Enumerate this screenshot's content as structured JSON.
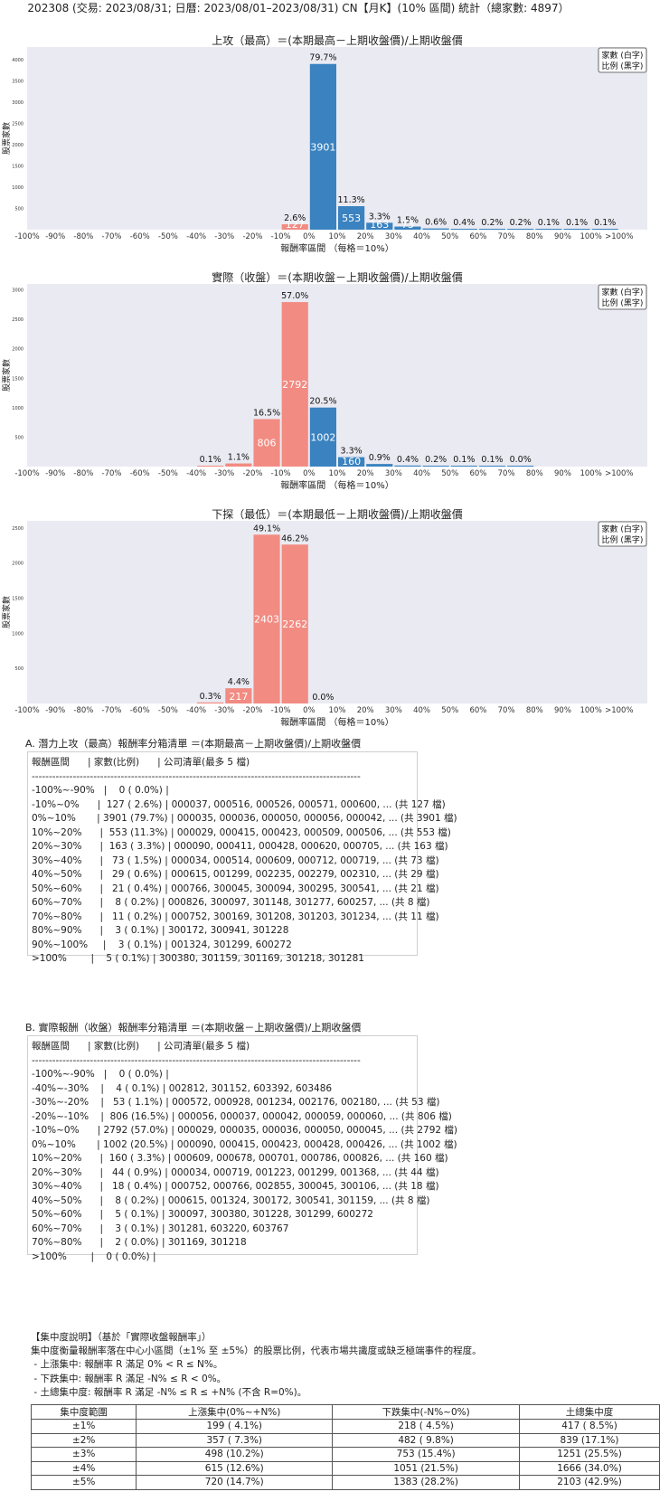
{
  "main_title": "202308 (交易: 2023/08/31; 日曆: 2023/08/01–2023/08/31) CN【月K】(10% 區間) 統計（總家數: 4897）",
  "colors": {
    "neg": "#f28b82",
    "pos": "#3a82c0",
    "plot_bg": "#eaeaf2"
  },
  "chart_data": [
    {
      "type": "bar",
      "title": "上攻（最高）＝(本期最高－上期收盤價)/上期收盤價",
      "xlabel": "報酬率區間 （每格＝10%）",
      "ylabel": "股票家數",
      "legend": [
        "家數 (白字)",
        "比例 (黑字)"
      ],
      "legend_placement": "top-right",
      "xticks": [
        "-100%",
        "-90%",
        "-80%",
        "-70%",
        "-60%",
        "-50%",
        "-40%",
        "-30%",
        "-20%",
        "-10%",
        "0%",
        "10%",
        "20%",
        "30%",
        "40%",
        "50%",
        "60%",
        "70%",
        "80%",
        "90%",
        "100%",
        ">100%"
      ],
      "yticks": [
        500,
        1000,
        1500,
        2000,
        2500,
        3000,
        3500,
        4000
      ],
      "ylim": [
        0,
        4300
      ],
      "bars": [
        {
          "bin": "-10%~0%",
          "start": 9,
          "count": 127,
          "count_label": "127",
          "pct_label": "2.6%",
          "sign": "neg"
        },
        {
          "bin": "0%~10%",
          "start": 10,
          "count": 3901,
          "count_label": "3901",
          "pct_label": "79.7%",
          "sign": "pos"
        },
        {
          "bin": "10%~20%",
          "start": 11,
          "count": 553,
          "count_label": "553",
          "pct_label": "11.3%",
          "sign": "pos"
        },
        {
          "bin": "20%~30%",
          "start": 12,
          "count": 163,
          "count_label": "163",
          "pct_label": "3.3%",
          "sign": "pos"
        },
        {
          "bin": "30%~40%",
          "start": 13,
          "count": 73,
          "count_label": "73",
          "pct_label": "1.5%",
          "sign": "pos"
        },
        {
          "bin": "40%~50%",
          "start": 14,
          "count": 29,
          "count_label": "",
          "pct_label": "0.6%",
          "sign": "pos"
        },
        {
          "bin": "50%~60%",
          "start": 15,
          "count": 21,
          "count_label": "",
          "pct_label": "0.4%",
          "sign": "pos"
        },
        {
          "bin": "60%~70%",
          "start": 16,
          "count": 8,
          "count_label": "",
          "pct_label": "0.2%",
          "sign": "pos"
        },
        {
          "bin": "70%~80%",
          "start": 17,
          "count": 11,
          "count_label": "",
          "pct_label": "0.2%",
          "sign": "pos"
        },
        {
          "bin": "80%~90%",
          "start": 18,
          "count": 3,
          "count_label": "",
          "pct_label": "0.1%",
          "sign": "pos"
        },
        {
          "bin": "90%~100%",
          "start": 19,
          "count": 3,
          "count_label": "",
          "pct_label": "0.1%",
          "sign": "pos"
        },
        {
          "bin": ">100%",
          "start": 20,
          "count": 5,
          "count_label": "",
          "pct_label": "0.1%",
          "sign": "pos"
        }
      ]
    },
    {
      "type": "bar",
      "title": "實際（收盤）＝(本期收盤－上期收盤價)/上期收盤價",
      "xlabel": "報酬率區間 （每格＝10%）",
      "ylabel": "股票家數",
      "legend": [
        "家數 (白字)",
        "比例 (黑字)"
      ],
      "legend_placement": "top-right",
      "xticks": [
        "-100%",
        "-90%",
        "-80%",
        "-70%",
        "-60%",
        "-50%",
        "-40%",
        "-30%",
        "-20%",
        "-10%",
        "0%",
        "10%",
        "20%",
        "30%",
        "40%",
        "50%",
        "60%",
        "70%",
        "80%",
        "90%",
        "100%",
        ">100%"
      ],
      "yticks": [
        500,
        1000,
        1500,
        2000,
        2500,
        3000
      ],
      "ylim": [
        0,
        3100
      ],
      "bars": [
        {
          "bin": "-40%~-30%",
          "start": 6,
          "count": 4,
          "count_label": "",
          "pct_label": "0.1%",
          "sign": "neg"
        },
        {
          "bin": "-30%~-20%",
          "start": 7,
          "count": 53,
          "count_label": "",
          "pct_label": "1.1%",
          "sign": "neg"
        },
        {
          "bin": "-20%~-10%",
          "start": 8,
          "count": 806,
          "count_label": "806",
          "pct_label": "16.5%",
          "sign": "neg"
        },
        {
          "bin": "-10%~0%",
          "start": 9,
          "count": 2792,
          "count_label": "2792",
          "pct_label": "57.0%",
          "sign": "neg"
        },
        {
          "bin": "0%~10%",
          "start": 10,
          "count": 1002,
          "count_label": "1002",
          "pct_label": "20.5%",
          "sign": "pos"
        },
        {
          "bin": "10%~20%",
          "start": 11,
          "count": 160,
          "count_label": "160",
          "pct_label": "3.3%",
          "sign": "pos"
        },
        {
          "bin": "20%~30%",
          "start": 12,
          "count": 44,
          "count_label": "",
          "pct_label": "0.9%",
          "sign": "pos"
        },
        {
          "bin": "30%~40%",
          "start": 13,
          "count": 18,
          "count_label": "",
          "pct_label": "0.4%",
          "sign": "pos"
        },
        {
          "bin": "40%~50%",
          "start": 14,
          "count": 8,
          "count_label": "",
          "pct_label": "0.2%",
          "sign": "pos"
        },
        {
          "bin": "50%~60%",
          "start": 15,
          "count": 5,
          "count_label": "",
          "pct_label": "0.1%",
          "sign": "pos"
        },
        {
          "bin": "60%~70%",
          "start": 16,
          "count": 3,
          "count_label": "",
          "pct_label": "0.1%",
          "sign": "pos"
        },
        {
          "bin": "70%~80%",
          "start": 17,
          "count": 2,
          "count_label": "",
          "pct_label": "0.0%",
          "sign": "pos"
        }
      ]
    },
    {
      "type": "bar",
      "title": "下探（最低）＝(本期最低－上期收盤價)/上期收盤價",
      "xlabel": "報酬率區間 （每格＝10%）",
      "ylabel": "股票家數",
      "legend": [
        "家數 (白字)",
        "比例 (黑字)"
      ],
      "legend_placement": "top-right",
      "xticks": [
        "-100%",
        "-90%",
        "-80%",
        "-70%",
        "-60%",
        "-50%",
        "-40%",
        "-30%",
        "-20%",
        "-10%",
        "0%",
        "10%",
        "20%",
        "30%",
        "40%",
        "50%",
        "60%",
        "70%",
        "80%",
        "90%",
        "100%",
        ">100%"
      ],
      "yticks": [
        500,
        1000,
        1500,
        2000,
        2500
      ],
      "ylim": [
        0,
        2600
      ],
      "bars": [
        {
          "bin": "-40%~-30%",
          "start": 6,
          "count": 15,
          "count_label": "",
          "pct_label": "0.3%",
          "sign": "neg"
        },
        {
          "bin": "-30%~-20%",
          "start": 7,
          "count": 217,
          "count_label": "217",
          "pct_label": "4.4%",
          "sign": "neg"
        },
        {
          "bin": "-20%~-10%",
          "start": 8,
          "count": 2403,
          "count_label": "2403",
          "pct_label": "49.1%",
          "sign": "neg"
        },
        {
          "bin": "-10%~0%",
          "start": 9,
          "count": 2262,
          "count_label": "2262",
          "pct_label": "46.2%",
          "sign": "neg"
        },
        {
          "bin": "0%~10%",
          "start": 10,
          "count": 0,
          "count_label": "",
          "pct_label": "0.0%",
          "sign": "pos"
        }
      ]
    }
  ],
  "list_a": {
    "title": "A. 潛力上攻（最高）報酬率分箱清單 ＝(本期最高－上期收盤價)/上期收盤價",
    "lines": [
      "報酬區間      | 家數(比例)      | 公司清單(最多 5 檔)",
      "------------------------------------------------------------------------------------------------",
      "-100%~-90%   |    0 ( 0.0%) |",
      "-10%~0%      |  127 ( 2.6%) | 000037, 000516, 000526, 000571, 000600, ... (共 127 檔)",
      "0%~10%       | 3901 (79.7%) | 000035, 000036, 000050, 000056, 000042, ... (共 3901 檔)",
      "10%~20%      |  553 (11.3%) | 000029, 000415, 000423, 000509, 000506, ... (共 553 檔)",
      "20%~30%      |  163 ( 3.3%) | 000090, 000411, 000428, 000620, 000705, ... (共 163 檔)",
      "30%~40%      |   73 ( 1.5%) | 000034, 000514, 000609, 000712, 000719, ... (共 73 檔)",
      "40%~50%      |   29 ( 0.6%) | 000615, 001299, 002235, 002279, 002310, ... (共 29 檔)",
      "50%~60%      |   21 ( 0.4%) | 000766, 300045, 300094, 300295, 300541, ... (共 21 檔)",
      "60%~70%      |    8 ( 0.2%) | 000826, 300097, 301148, 301277, 600257, ... (共 8 檔)",
      "70%~80%      |   11 ( 0.2%) | 000752, 300169, 301208, 301203, 301234, ... (共 11 檔)",
      "80%~90%      |    3 ( 0.1%) | 300172, 300941, 301228",
      "90%~100%     |    3 ( 0.1%) | 001324, 301299, 600272",
      ">100%        |    5 ( 0.1%) | 300380, 301159, 301169, 301218, 301281"
    ]
  },
  "list_b": {
    "title": "B. 實際報酬（收盤）報酬率分箱清單 ＝(本期收盤－上期收盤價)/上期收盤價",
    "lines": [
      "報酬區間      | 家數(比例)      | 公司清單(最多 5 檔)",
      "------------------------------------------------------------------------------------------------",
      "-100%~-90%   |    0 ( 0.0%) |",
      "-40%~-30%    |    4 ( 0.1%) | 002812, 301152, 603392, 603486",
      "-30%~-20%    |   53 ( 1.1%) | 000572, 000928, 001234, 002176, 002180, ... (共 53 檔)",
      "-20%~-10%    |  806 (16.5%) | 000056, 000037, 000042, 000059, 000060, ... (共 806 檔)",
      "-10%~0%      | 2792 (57.0%) | 000029, 000035, 000036, 000050, 000045, ... (共 2792 檔)",
      "0%~10%       | 1002 (20.5%) | 000090, 000415, 000423, 000428, 000426, ... (共 1002 檔)",
      "10%~20%      |  160 ( 3.3%) | 000609, 000678, 000701, 000786, 000826, ... (共 160 檔)",
      "20%~30%      |   44 ( 0.9%) | 000034, 000719, 001223, 001299, 001368, ... (共 44 檔)",
      "30%~40%      |   18 ( 0.4%) | 000752, 000766, 002855, 300045, 300106, ... (共 18 檔)",
      "40%~50%      |    8 ( 0.2%) | 000615, 001324, 300172, 300541, 301159, ... (共 8 檔)",
      "50%~60%      |    5 ( 0.1%) | 300097, 300380, 301228, 301299, 600272",
      "60%~70%      |    3 ( 0.1%) | 301281, 603220, 603767",
      "70%~80%      |    2 ( 0.0%) | 301169, 301218",
      ">100%        |    0 ( 0.0%) |"
    ]
  },
  "concentration": {
    "lines": [
      "【集中度說明】（基於「實際收盤報酬率」）",
      "集中度衡量報酬率落在中心小區間（±1% 至 ±5%）的股票比例，代表市場共識度或缺乏極端事件的程度。",
      " - 上漲集中: 報酬率 R 滿足 0% < R ≤ N%。",
      " - 下跌集中: 報酬率 R 滿足 -N% ≤ R < 0%。",
      " - 土總集中度: 報酬率 R 滿足 -N% ≤ R ≤ +N% (不含 R=0%)。"
    ],
    "table": {
      "headers": [
        "集中度範圍",
        "上漲集中(0%~+N%)",
        "下跌集中(-N%~0%)",
        "土總集中度"
      ],
      "rows": [
        [
          "±1%",
          "199 ( 4.1%)",
          "218 ( 4.5%)",
          "417 ( 8.5%)"
        ],
        [
          "±2%",
          "357 ( 7.3%)",
          "482 ( 9.8%)",
          "839 (17.1%)"
        ],
        [
          "±3%",
          "498 (10.2%)",
          "753 (15.4%)",
          "1251 (25.5%)"
        ],
        [
          "±4%",
          "615 (12.6%)",
          "1051 (21.5%)",
          "1666 (34.0%)"
        ],
        [
          "±5%",
          "720 (14.7%)",
          "1383 (28.2%)",
          "2103 (42.9%)"
        ]
      ]
    }
  }
}
